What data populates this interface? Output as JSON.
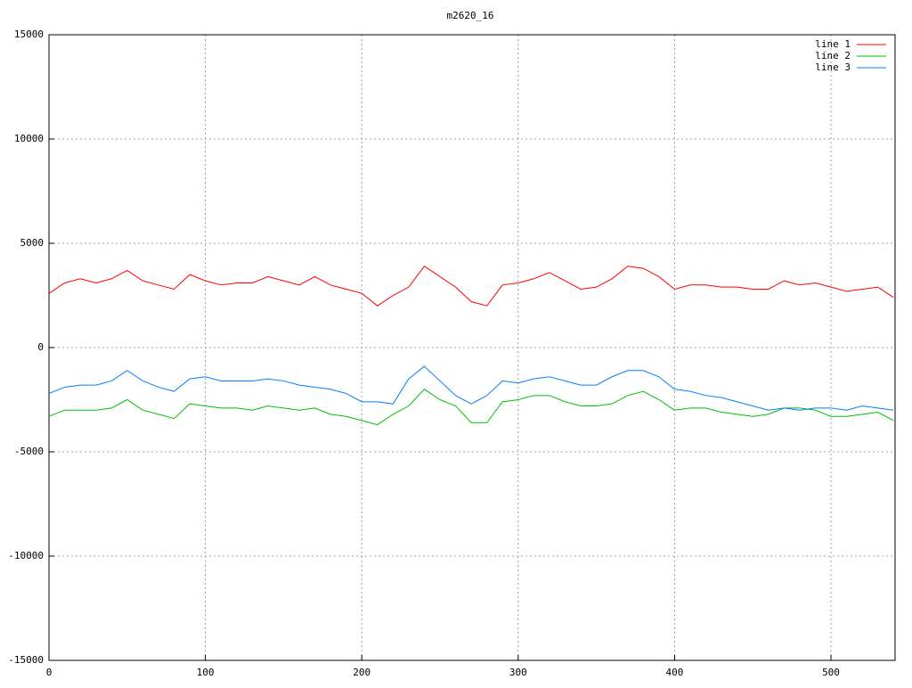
{
  "chart_data": {
    "type": "line",
    "title": "m2620_16",
    "x": [
      0,
      10,
      20,
      30,
      40,
      50,
      60,
      70,
      80,
      90,
      100,
      110,
      120,
      130,
      140,
      150,
      160,
      170,
      180,
      190,
      200,
      210,
      220,
      230,
      240,
      250,
      260,
      270,
      280,
      290,
      300,
      310,
      320,
      330,
      340,
      350,
      360,
      370,
      380,
      390,
      400,
      410,
      420,
      430,
      440,
      450,
      460,
      470,
      480,
      490,
      500,
      510,
      520,
      530,
      540
    ],
    "series": [
      {
        "name": "line 1",
        "color": "#ff0000",
        "values": [
          2600,
          3100,
          3300,
          3100,
          3300,
          3700,
          3200,
          3000,
          2800,
          3500,
          3200,
          3000,
          3100,
          3100,
          3400,
          3200,
          3000,
          3400,
          3000,
          2800,
          2600,
          2000,
          2500,
          2900,
          3900,
          3400,
          2900,
          2200,
          2000,
          3000,
          3100,
          3300,
          3600,
          3200,
          2800,
          2900,
          3300,
          3900,
          3800,
          3400,
          2800,
          3000,
          3000,
          2900,
          2900,
          2800,
          2800,
          3200,
          3000,
          3100,
          2900,
          2700,
          2800,
          2900,
          2400
        ]
      },
      {
        "name": "line 2",
        "color": "#00c000",
        "values": [
          -3300,
          -3000,
          -3000,
          -3000,
          -2900,
          -2500,
          -3000,
          -3200,
          -3400,
          -2700,
          -2800,
          -2900,
          -2900,
          -3000,
          -2800,
          -2900,
          -3000,
          -2900,
          -3200,
          -3300,
          -3500,
          -3700,
          -3200,
          -2800,
          -2000,
          -2500,
          -2800,
          -3600,
          -3600,
          -2600,
          -2500,
          -2300,
          -2300,
          -2600,
          -2800,
          -2800,
          -2700,
          -2300,
          -2100,
          -2500,
          -3000,
          -2900,
          -2900,
          -3100,
          -3200,
          -3300,
          -3200,
          -2900,
          -2900,
          -3000,
          -3300,
          -3300,
          -3200,
          -3100,
          -3500
        ]
      },
      {
        "name": "line 3",
        "color": "#0080ff",
        "values": [
          -2200,
          -1900,
          -1800,
          -1800,
          -1600,
          -1100,
          -1600,
          -1900,
          -2100,
          -1500,
          -1400,
          -1600,
          -1600,
          -1600,
          -1500,
          -1600,
          -1800,
          -1900,
          -2000,
          -2200,
          -2600,
          -2600,
          -2700,
          -1500,
          -900,
          -1600,
          -2300,
          -2700,
          -2300,
          -1600,
          -1700,
          -1500,
          -1400,
          -1600,
          -1800,
          -1800,
          -1400,
          -1100,
          -1100,
          -1400,
          -2000,
          -2100,
          -2300,
          -2400,
          -2600,
          -2800,
          -3000,
          -2900,
          -3000,
          -2900,
          -2900,
          -3000,
          -2800,
          -2900,
          -3000
        ]
      }
    ],
    "xlim": [
      0,
      541
    ],
    "xticks": [
      0,
      100,
      200,
      300,
      400,
      500
    ],
    "ylim": [
      -15000,
      15000
    ],
    "yticks": [
      -15000,
      -10000,
      -5000,
      0,
      5000,
      10000,
      15000
    ],
    "grid": true,
    "legend": "top-right"
  }
}
